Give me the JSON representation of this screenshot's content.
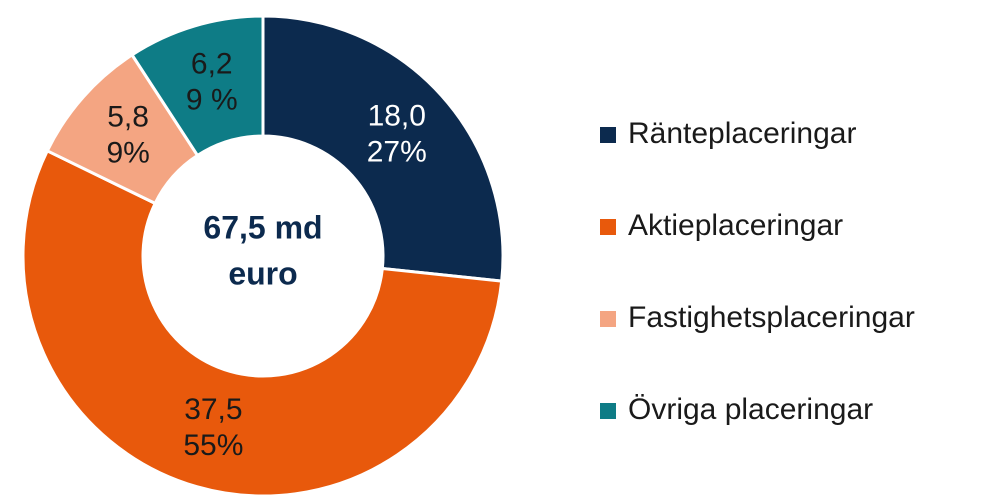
{
  "chart_data": {
    "type": "donut",
    "center_label": [
      "67,5 md",
      "euro"
    ],
    "categories": [
      "Ränteplaceringar",
      "Aktieplaceringar",
      "Fastighetsplaceringar",
      "Övriga placeringar"
    ],
    "values": [
      18.0,
      37.5,
      5.8,
      6.2
    ],
    "value_labels": [
      "18,0",
      "37,5",
      "5,8",
      "6,2"
    ],
    "percent_labels": [
      "27%",
      "55%",
      "9%",
      "9 %"
    ],
    "colors": [
      "#0c2a4e",
      "#e8590c",
      "#f4a582",
      "#0e7c86"
    ],
    "label_colors": [
      "#ffffff",
      "#1a1a1a",
      "#1a1a1a",
      "#1a1a1a"
    ],
    "legend": "right"
  }
}
